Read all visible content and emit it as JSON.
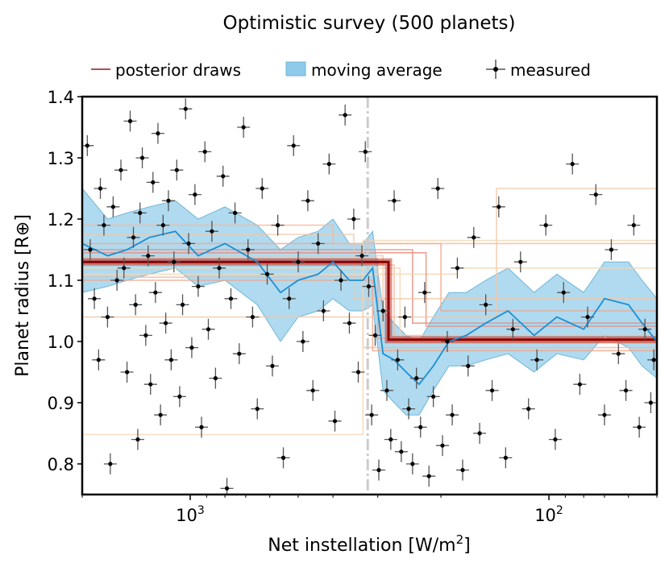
{
  "chart_data": {
    "type": "scatter",
    "title": "Optimistic survey (500 planets)",
    "xlabel": "Net instellation [W/m²]",
    "ylabel": "Planet radius [R⊕]",
    "x_scale": "log-reversed",
    "xlim": [
      2000,
      50
    ],
    "ylim": [
      0.75,
      1.4
    ],
    "y_ticks": [
      "0.8",
      "0.9",
      "1.0",
      "1.1",
      "1.2",
      "1.3",
      "1.4"
    ],
    "x_ticks": [
      {
        "base": "10",
        "exp": "3",
        "value": 1000
      },
      {
        "base": "10",
        "exp": "2",
        "value": 100
      }
    ],
    "grid": false,
    "legend_position": "top",
    "legend": [
      {
        "label": "posterior draws",
        "kind": "line",
        "color": "#b05050"
      },
      {
        "label": "moving average",
        "kind": "patch",
        "color": "#8ecbe8"
      },
      {
        "label": "measured",
        "kind": "errorbar",
        "color": "#000000"
      }
    ],
    "threshold_line_x": 320,
    "posterior_step": {
      "x_break": 280,
      "y_high": 1.13,
      "y_low": 1.003
    },
    "posterior_draws": [
      {
        "x_break": 300,
        "y_high": 1.135,
        "y_low": 1.005
      },
      {
        "x_break": 270,
        "y_high": 1.125,
        "y_low": 0.998
      },
      {
        "x_break": 290,
        "y_high": 1.14,
        "y_low": 1.01
      },
      {
        "x_break": 260,
        "y_high": 1.12,
        "y_low": 1.0
      },
      {
        "x_break": 240,
        "y_high": 1.15,
        "y_low": 1.03
      },
      {
        "x_break": 200,
        "y_high": 1.16,
        "y_low": 1.05
      },
      {
        "x_break": 330,
        "y_high": 1.105,
        "y_low": 0.99
      },
      {
        "x_break": 350,
        "y_high": 1.175,
        "y_low": 1.07
      },
      {
        "x_break": 180,
        "y_high": 1.11,
        "y_low": 1.12
      },
      {
        "x_break": 220,
        "y_high": 1.145,
        "y_low": 1.025
      },
      {
        "x_break": 310,
        "y_high": 1.1,
        "y_low": 0.985
      },
      {
        "x_break": 400,
        "y_high": 1.19,
        "y_low": 1.16
      },
      {
        "x_break": 140,
        "y_high": 1.04,
        "y_low": 1.25
      },
      {
        "x_break": 330,
        "y_high": 0.848,
        "y_low": 1.165
      }
    ],
    "moving_average": {
      "x": [
        2000,
        1700,
        1500,
        1300,
        1100,
        950,
        800,
        650,
        560,
        500,
        440,
        400,
        360,
        330,
        310,
        290,
        270,
        250,
        230,
        210,
        190,
        170,
        150,
        130,
        110,
        95,
        80,
        70,
        60,
        55,
        50
      ],
      "mean": [
        1.16,
        1.14,
        1.15,
        1.17,
        1.18,
        1.14,
        1.16,
        1.13,
        1.08,
        1.1,
        1.11,
        1.13,
        1.1,
        1.1,
        1.12,
        0.98,
        0.97,
        0.95,
        0.93,
        0.96,
        1.0,
        1.01,
        1.03,
        1.05,
        1.01,
        1.04,
        1.02,
        1.07,
        1.06,
        1.03,
        1.0
      ],
      "low": [
        1.08,
        1.09,
        1.1,
        1.11,
        1.12,
        1.09,
        1.1,
        1.06,
        1.0,
        1.04,
        1.05,
        1.07,
        1.05,
        1.05,
        1.06,
        0.92,
        0.9,
        0.88,
        0.88,
        0.92,
        0.96,
        0.96,
        0.97,
        0.98,
        0.95,
        0.98,
        0.97,
        1.01,
        0.99,
        0.96,
        0.94
      ],
      "high": [
        1.25,
        1.2,
        1.21,
        1.22,
        1.23,
        1.2,
        1.22,
        1.19,
        1.15,
        1.17,
        1.18,
        1.2,
        1.16,
        1.16,
        1.18,
        1.05,
        1.03,
        1.01,
        1.0,
        1.04,
        1.08,
        1.08,
        1.1,
        1.12,
        1.08,
        1.11,
        1.08,
        1.13,
        1.13,
        1.1,
        1.07
      ]
    },
    "measured_points": [
      [
        1936,
        1.32
      ],
      [
        1900,
        1.15
      ],
      [
        1850,
        1.07
      ],
      [
        1800,
        0.97
      ],
      [
        1780,
        1.25
      ],
      [
        1740,
        1.19
      ],
      [
        1700,
        1.04
      ],
      [
        1670,
        0.8
      ],
      [
        1640,
        1.22
      ],
      [
        1600,
        1.1
      ],
      [
        1560,
        1.28
      ],
      [
        1530,
        1.12
      ],
      [
        1500,
        0.95
      ],
      [
        1470,
        1.36
      ],
      [
        1440,
        1.17
      ],
      [
        1420,
        1.06
      ],
      [
        1400,
        0.84
      ],
      [
        1380,
        1.21
      ],
      [
        1360,
        1.3
      ],
      [
        1330,
        1.01
      ],
      [
        1310,
        1.14
      ],
      [
        1290,
        0.93
      ],
      [
        1270,
        1.26
      ],
      [
        1250,
        1.08
      ],
      [
        1230,
        1.34
      ],
      [
        1210,
        0.88
      ],
      [
        1190,
        1.19
      ],
      [
        1170,
        1.03
      ],
      [
        1150,
        1.23
      ],
      [
        1130,
        0.97
      ],
      [
        1110,
        1.13
      ],
      [
        1090,
        1.28
      ],
      [
        1070,
        0.91
      ],
      [
        1050,
        1.06
      ],
      [
        1030,
        1.38
      ],
      [
        1010,
        1.16
      ],
      [
        990,
        0.99
      ],
      [
        970,
        1.24
      ],
      [
        950,
        1.09
      ],
      [
        930,
        0.86
      ],
      [
        910,
        1.31
      ],
      [
        890,
        1.02
      ],
      [
        870,
        1.18
      ],
      [
        850,
        0.94
      ],
      [
        830,
        1.12
      ],
      [
        810,
        1.27
      ],
      [
        790,
        0.76
      ],
      [
        770,
        1.07
      ],
      [
        750,
        1.21
      ],
      [
        730,
        0.98
      ],
      [
        710,
        1.35
      ],
      [
        690,
        1.15
      ],
      [
        670,
        1.04
      ],
      [
        650,
        0.89
      ],
      [
        630,
        1.25
      ],
      [
        610,
        1.11
      ],
      [
        590,
        0.96
      ],
      [
        570,
        1.19
      ],
      [
        550,
        0.81
      ],
      [
        530,
        1.07
      ],
      [
        515,
        1.32
      ],
      [
        500,
        1.13
      ],
      [
        485,
        1.0
      ],
      [
        470,
        1.23
      ],
      [
        455,
        0.92
      ],
      [
        440,
        1.16
      ],
      [
        425,
        1.05
      ],
      [
        410,
        1.29
      ],
      [
        395,
        0.87
      ],
      [
        380,
        1.1
      ],
      [
        370,
        1.37
      ],
      [
        360,
        1.03
      ],
      [
        350,
        1.2
      ],
      [
        340,
        0.95
      ],
      [
        332,
        1.14
      ],
      [
        325,
        1.31
      ],
      [
        318,
        1.09
      ],
      [
        312,
        0.88
      ],
      [
        305,
        1.01
      ],
      [
        298,
        0.79
      ],
      [
        290,
        1.05
      ],
      [
        283,
        0.92
      ],
      [
        276,
        0.84
      ],
      [
        270,
        1.23
      ],
      [
        264,
        0.97
      ],
      [
        258,
        0.82
      ],
      [
        252,
        1.04
      ],
      [
        246,
        0.89
      ],
      [
        240,
        0.8
      ],
      [
        234,
        0.94
      ],
      [
        228,
        0.86
      ],
      [
        222,
        1.08
      ],
      [
        216,
        0.78
      ],
      [
        210,
        0.91
      ],
      [
        204,
        1.25
      ],
      [
        198,
        0.83
      ],
      [
        192,
        1.0
      ],
      [
        186,
        0.88
      ],
      [
        180,
        1.12
      ],
      [
        174,
        0.79
      ],
      [
        168,
        0.96
      ],
      [
        162,
        1.17
      ],
      [
        156,
        0.85
      ],
      [
        150,
        1.06
      ],
      [
        144,
        0.92
      ],
      [
        138,
        1.22
      ],
      [
        132,
        0.81
      ],
      [
        126,
        1.02
      ],
      [
        120,
        1.13
      ],
      [
        114,
        0.89
      ],
      [
        108,
        0.97
      ],
      [
        102,
        1.19
      ],
      [
        96,
        0.84
      ],
      [
        91,
        1.08
      ],
      [
        86,
        1.29
      ],
      [
        82,
        0.93
      ],
      [
        78,
        1.04
      ],
      [
        74,
        1.24
      ],
      [
        70,
        0.88
      ],
      [
        67,
        1.15
      ],
      [
        64,
        0.98
      ],
      [
        61,
        0.92
      ],
      [
        58,
        1.19
      ],
      [
        56,
        0.86
      ],
      [
        54,
        1.02
      ],
      [
        52,
        0.9
      ],
      [
        51,
        0.97
      ]
    ]
  }
}
